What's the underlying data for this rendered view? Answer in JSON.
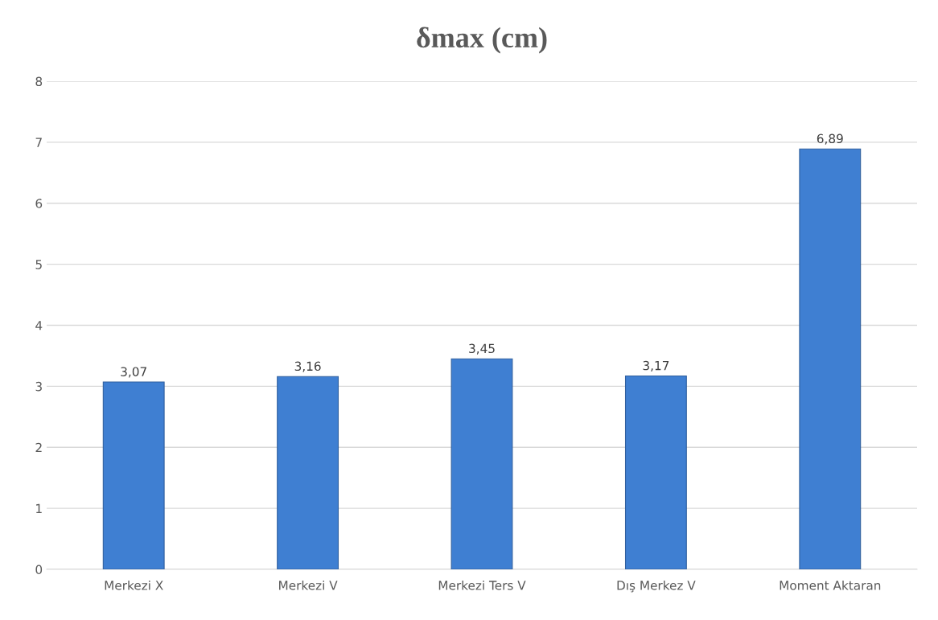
{
  "chart_data": {
    "type": "bar",
    "title": "δmax (cm)",
    "categories": [
      "Merkezi X",
      "Merkezi V",
      "Merkezi Ters V",
      "Dış Merkez V",
      "Moment Aktaran"
    ],
    "values": [
      3.07,
      3.16,
      3.45,
      3.17,
      6.89
    ],
    "value_labels": [
      "3,07",
      "3,16",
      "3,45",
      "3,17",
      "6,89"
    ],
    "color": "#3f7fd2",
    "ylim": [
      0,
      8
    ],
    "yticks": [
      0,
      1,
      2,
      3,
      4,
      5,
      6,
      7,
      8
    ],
    "grid": "y",
    "legend": false
  }
}
